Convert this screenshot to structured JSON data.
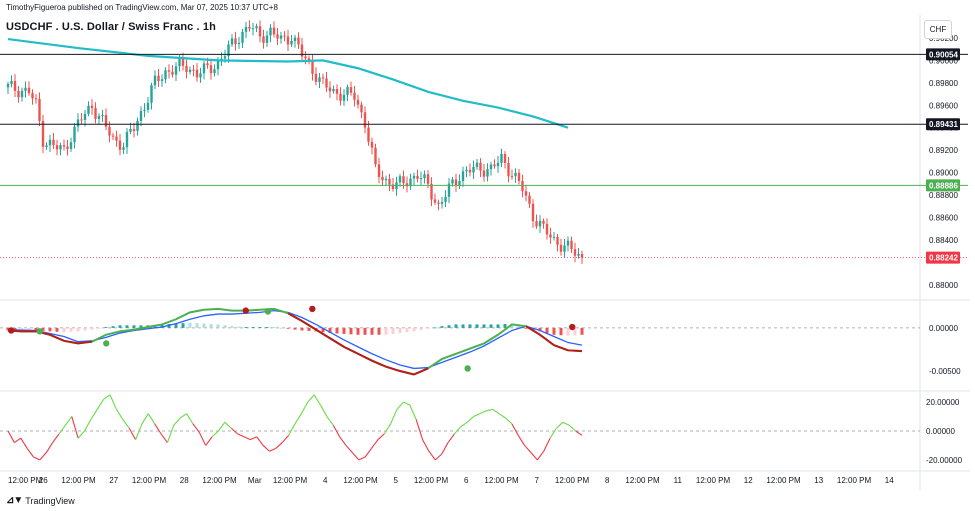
{
  "header": {
    "publisher_line": "TimothyFigueroa published on TradingView.com, Mar 07, 2025 10:37 UTC+8",
    "title": "USDCHF . U.S. Dollar / Swiss Franc . 1h",
    "currency": "CHF"
  },
  "footer": {
    "logo_icon": "tradingview-logo-icon",
    "brand": "TradingView"
  },
  "colors": {
    "up": "#26a69a",
    "down": "#ef5350",
    "ma": "#22bcc9",
    "green_line": "#4caf50",
    "red_line": "#b71c1c",
    "blue_line": "#2962ff"
  },
  "chart_data": [
    {
      "type": "candlestick",
      "pane": "price",
      "ylim": [
        0.879,
        0.9036
      ],
      "y_ticks": [
        "0.90200",
        "0.90000",
        "0.89800",
        "0.89600",
        "0.89400",
        "0.89200",
        "0.89000",
        "0.88800",
        "0.88600",
        "0.88400",
        "0.88000"
      ],
      "y_tick_values": [
        0.902,
        0.9,
        0.898,
        0.896,
        0.894,
        0.892,
        0.89,
        0.888,
        0.886,
        0.884,
        0.88
      ],
      "close_path": [
        [
          0,
          0.8976
        ],
        [
          3,
          0.8974
        ],
        [
          6,
          0.8972
        ],
        [
          8,
          0.896
        ],
        [
          10,
          0.893
        ],
        [
          13,
          0.8923
        ],
        [
          16,
          0.892
        ],
        [
          18,
          0.8933
        ],
        [
          21,
          0.8948
        ],
        [
          24,
          0.896
        ],
        [
          27,
          0.8945
        ],
        [
          30,
          0.893
        ],
        [
          33,
          0.8925
        ],
        [
          36,
          0.894
        ],
        [
          39,
          0.896
        ],
        [
          42,
          0.898
        ],
        [
          45,
          0.899
        ],
        [
          48,
          0.8993
        ],
        [
          51,
          0.8995
        ],
        [
          54,
          0.8988
        ],
        [
          57,
          0.8992
        ],
        [
          60,
          0.8998
        ],
        [
          63,
          0.901
        ],
        [
          66,
          0.9022
        ],
        [
          69,
          0.903
        ],
        [
          72,
          0.9022
        ],
        [
          75,
          0.9025
        ],
        [
          78,
          0.9018
        ],
        [
          81,
          0.9022
        ],
        [
          84,
          0.9005
        ],
        [
          87,
          0.8992
        ],
        [
          90,
          0.8978
        ],
        [
          93,
          0.8972
        ],
        [
          96,
          0.897
        ],
        [
          99,
          0.8968
        ],
        [
          102,
          0.8945
        ],
        [
          105,
          0.8902
        ],
        [
          108,
          0.8893
        ],
        [
          111,
          0.8888
        ],
        [
          114,
          0.8893
        ],
        [
          117,
          0.8898
        ],
        [
          120,
          0.8888
        ],
        [
          123,
          0.887
        ],
        [
          126,
          0.8885
        ],
        [
          129,
          0.8898
        ],
        [
          132,
          0.8902
        ],
        [
          135,
          0.8904
        ],
        [
          138,
          0.8903
        ],
        [
          141,
          0.8912
        ],
        [
          144,
          0.89
        ],
        [
          147,
          0.8885
        ],
        [
          150,
          0.8862
        ],
        [
          153,
          0.8849
        ],
        [
          156,
          0.884
        ],
        [
          159,
          0.8834
        ],
        [
          162,
          0.8829
        ],
        [
          164,
          0.8824
        ]
      ],
      "moving_average": [
        [
          0,
          0.9019
        ],
        [
          20,
          0.9011
        ],
        [
          40,
          0.9004
        ],
        [
          60,
          0.9
        ],
        [
          80,
          0.8999
        ],
        [
          90,
          0.9
        ],
        [
          100,
          0.8993
        ],
        [
          110,
          0.8983
        ],
        [
          120,
          0.8972
        ],
        [
          130,
          0.8964
        ],
        [
          140,
          0.8958
        ],
        [
          150,
          0.895
        ],
        [
          160,
          0.894
        ]
      ],
      "horizontal_levels": [
        {
          "value": 0.90054,
          "label": "0.90054",
          "color": "#131722",
          "style": "solid"
        },
        {
          "value": 0.89431,
          "label": "0.89431",
          "color": "#131722",
          "style": "solid"
        },
        {
          "value": 0.88886,
          "label": "0.88886",
          "color": "#4caf50",
          "style": "solid"
        },
        {
          "value": 0.88242,
          "label": "0.88242",
          "color": "#f23645",
          "style": "dotted"
        }
      ]
    },
    {
      "type": "histogram+lines",
      "pane": "oscillator",
      "ylim": [
        -0.0072,
        0.003
      ],
      "y_ticks": [
        "0.00000",
        "-0.00500"
      ],
      "y_tick_values": [
        0.0,
        -0.005
      ],
      "fast_line": [
        [
          0,
          -0.0003
        ],
        [
          4,
          -0.0004
        ],
        [
          8,
          -0.0004
        ],
        [
          12,
          -0.0008
        ],
        [
          16,
          -0.0015
        ],
        [
          20,
          -0.0018
        ],
        [
          24,
          -0.0016
        ],
        [
          28,
          -0.0008
        ],
        [
          32,
          -0.0004
        ],
        [
          36,
          -0.0002
        ],
        [
          40,
          0.0001
        ],
        [
          44,
          0.0004
        ],
        [
          48,
          0.001
        ],
        [
          52,
          0.0018
        ],
        [
          56,
          0.0021
        ],
        [
          60,
          0.0022
        ],
        [
          64,
          0.002
        ],
        [
          68,
          0.002
        ],
        [
          72,
          0.0021
        ],
        [
          76,
          0.0022
        ],
        [
          80,
          0.0017
        ],
        [
          84,
          0.0008
        ],
        [
          88,
          -0.0002
        ],
        [
          92,
          -0.0012
        ],
        [
          96,
          -0.0022
        ],
        [
          100,
          -0.003
        ],
        [
          104,
          -0.0038
        ],
        [
          108,
          -0.0045
        ],
        [
          112,
          -0.005
        ],
        [
          116,
          -0.0054
        ],
        [
          120,
          -0.0047
        ],
        [
          124,
          -0.0036
        ],
        [
          128,
          -0.003
        ],
        [
          132,
          -0.0024
        ],
        [
          136,
          -0.0018
        ],
        [
          140,
          -0.0008
        ],
        [
          144,
          0.0004
        ],
        [
          148,
          0.0002
        ],
        [
          152,
          -0.0008
        ],
        [
          156,
          -0.002
        ],
        [
          160,
          -0.0026
        ],
        [
          164,
          -0.0027
        ]
      ],
      "slow_line": [
        [
          0,
          -0.0002
        ],
        [
          8,
          -0.0003
        ],
        [
          16,
          -0.001
        ],
        [
          20,
          -0.0016
        ],
        [
          24,
          -0.0015
        ],
        [
          28,
          -0.0011
        ],
        [
          32,
          -0.0006
        ],
        [
          36,
          -0.0003
        ],
        [
          40,
          -0.0001
        ],
        [
          44,
          0.0001
        ],
        [
          48,
          0.0005
        ],
        [
          52,
          0.001
        ],
        [
          56,
          0.0014
        ],
        [
          60,
          0.0016
        ],
        [
          64,
          0.0016
        ],
        [
          68,
          0.0017
        ],
        [
          72,
          0.0018
        ],
        [
          76,
          0.002
        ],
        [
          80,
          0.0018
        ],
        [
          84,
          0.0012
        ],
        [
          88,
          0.0004
        ],
        [
          92,
          -0.0005
        ],
        [
          96,
          -0.0014
        ],
        [
          100,
          -0.0022
        ],
        [
          104,
          -0.003
        ],
        [
          108,
          -0.0037
        ],
        [
          112,
          -0.0043
        ],
        [
          116,
          -0.0047
        ],
        [
          120,
          -0.0046
        ],
        [
          124,
          -0.004
        ],
        [
          128,
          -0.0034
        ],
        [
          132,
          -0.0028
        ],
        [
          136,
          -0.0021
        ],
        [
          140,
          -0.0012
        ],
        [
          144,
          -0.0003
        ],
        [
          148,
          0.0002
        ],
        [
          152,
          -0.0003
        ],
        [
          156,
          -0.001
        ],
        [
          160,
          -0.0017
        ],
        [
          164,
          -0.002
        ]
      ],
      "histogram": [
        [
          0,
          -0.0003
        ],
        [
          4,
          -0.0004
        ],
        [
          8,
          -0.0003
        ],
        [
          12,
          -0.0004
        ],
        [
          16,
          -0.0005
        ],
        [
          20,
          -0.0004
        ],
        [
          24,
          -0.0002
        ],
        [
          28,
          0.0001
        ],
        [
          32,
          0.0003
        ],
        [
          36,
          0.0003
        ],
        [
          40,
          0.0003
        ],
        [
          44,
          0.0004
        ],
        [
          48,
          0.0005
        ],
        [
          52,
          0.0006
        ],
        [
          56,
          0.0005
        ],
        [
          60,
          0.0004
        ],
        [
          64,
          0.0002
        ],
        [
          68,
          0.0001
        ],
        [
          72,
          0.0001
        ],
        [
          76,
          0.0001
        ],
        [
          80,
          -0.0001
        ],
        [
          84,
          -0.0003
        ],
        [
          88,
          -0.0004
        ],
        [
          92,
          -0.0006
        ],
        [
          96,
          -0.0007
        ],
        [
          100,
          -0.0008
        ],
        [
          104,
          -0.0008
        ],
        [
          108,
          -0.0008
        ],
        [
          112,
          -0.0006
        ],
        [
          116,
          -0.0004
        ],
        [
          120,
          -0.0001
        ],
        [
          124,
          0.0002
        ],
        [
          128,
          0.0004
        ],
        [
          132,
          0.0004
        ],
        [
          136,
          0.0004
        ],
        [
          140,
          0.0004
        ],
        [
          144,
          0.0005
        ],
        [
          148,
          -0.0001
        ],
        [
          152,
          -0.0004
        ],
        [
          156,
          -0.0008
        ],
        [
          160,
          -0.0009
        ],
        [
          164,
          -0.0008
        ]
      ],
      "cross_markers": [
        {
          "x": 1,
          "value": -0.0003,
          "color": "#b71c1c"
        },
        {
          "x": 10,
          "value": -0.0004,
          "color": "#4caf50"
        },
        {
          "x": 31,
          "value": -0.0018,
          "color": "#4caf50"
        },
        {
          "x": 75,
          "value": 0.002,
          "color": "#b71c1c"
        },
        {
          "x": 82,
          "value": 0.0019,
          "color": "#4caf50"
        },
        {
          "x": 96,
          "value": 0.0022,
          "color": "#b71c1c"
        },
        {
          "x": 145,
          "value": -0.0047,
          "color": "#4caf50"
        },
        {
          "x": 178,
          "value": 0.0001,
          "color": "#b71c1c"
        }
      ]
    },
    {
      "type": "line",
      "pane": "momentum",
      "ylim": [
        -27,
        27
      ],
      "y_ticks": [
        "20.00000",
        "0.00000",
        "-20.00000"
      ],
      "y_tick_values": [
        20,
        0,
        -20
      ],
      "values": [
        0,
        -8,
        -5,
        -12,
        -18,
        -20,
        -15,
        -8,
        -2,
        4,
        10,
        -5,
        0,
        8,
        15,
        22,
        25,
        15,
        8,
        2,
        -6,
        5,
        12,
        5,
        -2,
        -8,
        4,
        9,
        12,
        5,
        -1,
        -10,
        -4,
        0,
        6,
        2,
        -2,
        -4,
        -6,
        -4,
        -10,
        -14,
        -12,
        -8,
        -3,
        5,
        12,
        20,
        25,
        18,
        10,
        4,
        -4,
        -10,
        -15,
        -20,
        -18,
        -12,
        -6,
        -2,
        5,
        15,
        20,
        18,
        8,
        -6,
        -14,
        -20,
        -16,
        -8,
        -2,
        3,
        6,
        10,
        12,
        14,
        15,
        12,
        9,
        5,
        -3,
        -10,
        -15,
        -20,
        -14,
        -5,
        2,
        6,
        4,
        0,
        -3
      ]
    }
  ],
  "x_axis": {
    "labels": [
      "12:00 PM",
      "26",
      "12:00 PM",
      "27",
      "12:00 PM",
      "28",
      "12:00 PM",
      "Mar",
      "12:00 PM",
      "4",
      "12:00 PM",
      "5",
      "12:00 PM",
      "6",
      "12:00 PM",
      "7",
      "12:00 PM",
      "8",
      "12:00 PM",
      "11",
      "12:00 PM",
      "12",
      "12:00 PM",
      "13",
      "12:00 PM",
      "14"
    ],
    "positions": [
      0,
      3,
      6,
      9,
      12,
      15,
      18,
      21,
      24,
      27,
      30,
      33,
      36,
      39,
      42,
      45,
      48,
      51,
      54,
      57,
      60,
      63,
      66,
      69,
      72,
      75
    ]
  }
}
